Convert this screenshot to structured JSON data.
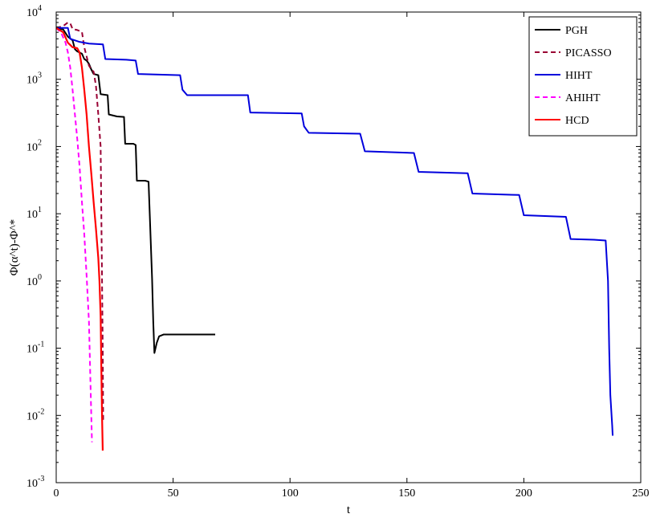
{
  "chart_data": {
    "type": "line",
    "xlabel": "t",
    "ylabel": "Φ(α^t)-Φ^*",
    "xlim": [
      0,
      250
    ],
    "ylim": [
      0.001,
      10000
    ],
    "yscale": "log",
    "x_ticks": [
      "0",
      "50",
      "100",
      "150",
      "200",
      "250"
    ],
    "y_ticks": [
      {
        "base": "10",
        "exp": "4"
      },
      {
        "base": "10",
        "exp": "3"
      },
      {
        "base": "10",
        "exp": "2"
      },
      {
        "base": "10",
        "exp": "1"
      },
      {
        "base": "10",
        "exp": "0"
      },
      {
        "base": "10",
        "exp": "-1"
      },
      {
        "base": "10",
        "exp": "-2"
      },
      {
        "base": "10",
        "exp": "-3"
      }
    ],
    "legend_position": "top-right",
    "series": [
      {
        "name": "PGH",
        "color": "#000000",
        "dash": "solid",
        "points": [
          [
            0,
            5800
          ],
          [
            3,
            5500
          ],
          [
            5,
            4300
          ],
          [
            7,
            3800
          ],
          [
            8,
            2800
          ],
          [
            9,
            2600
          ],
          [
            10,
            2500
          ],
          [
            11,
            2400
          ],
          [
            12,
            2000
          ],
          [
            13,
            1900
          ],
          [
            14,
            1700
          ],
          [
            15,
            1400
          ],
          [
            16,
            1200
          ],
          [
            18,
            1150
          ],
          [
            19,
            600
          ],
          [
            22,
            580
          ],
          [
            22.5,
            300
          ],
          [
            26,
            280
          ],
          [
            29,
            275
          ],
          [
            29.5,
            110
          ],
          [
            33,
            110
          ],
          [
            34,
            105
          ],
          [
            34.5,
            31
          ],
          [
            38,
            31
          ],
          [
            39.5,
            30
          ],
          [
            40,
            10
          ],
          [
            41,
            1.1
          ],
          [
            41.5,
            0.25
          ],
          [
            42,
            0.085
          ],
          [
            43,
            0.12
          ],
          [
            44,
            0.15
          ],
          [
            46,
            0.16
          ],
          [
            55,
            0.16
          ],
          [
            68,
            0.16
          ]
        ]
      },
      {
        "name": "PICASSO",
        "color": "#990033",
        "dash": "dashed",
        "points": [
          [
            0,
            5800
          ],
          [
            3,
            6200
          ],
          [
            5,
            7000
          ],
          [
            6,
            6800
          ],
          [
            7,
            5600
          ],
          [
            9,
            5400
          ],
          [
            11,
            5100
          ],
          [
            12,
            3000
          ],
          [
            14,
            1600
          ],
          [
            15,
            1400
          ],
          [
            16,
            1300
          ],
          [
            17,
            800
          ],
          [
            18,
            300
          ],
          [
            19,
            100
          ],
          [
            19.3,
            10
          ],
          [
            19.6,
            1.0
          ],
          [
            19.9,
            0.1
          ],
          [
            20.1,
            0.008
          ]
        ]
      },
      {
        "name": "HIHT",
        "color": "#0000dd",
        "dash": "solid",
        "points": [
          [
            0,
            5800
          ],
          [
            2,
            5800
          ],
          [
            5,
            5800
          ],
          [
            6,
            4000
          ],
          [
            10,
            3600
          ],
          [
            14,
            3400
          ],
          [
            20,
            3300
          ],
          [
            21,
            2000
          ],
          [
            30,
            1950
          ],
          [
            34,
            1900
          ],
          [
            35,
            1200
          ],
          [
            53,
            1150
          ],
          [
            54,
            700
          ],
          [
            56,
            580
          ],
          [
            82,
            580
          ],
          [
            83,
            320
          ],
          [
            105,
            310
          ],
          [
            106,
            200
          ],
          [
            108,
            160
          ],
          [
            130,
            155
          ],
          [
            132,
            85
          ],
          [
            153,
            80
          ],
          [
            155,
            42
          ],
          [
            176,
            40
          ],
          [
            178,
            20
          ],
          [
            198,
            19
          ],
          [
            200,
            9.5
          ],
          [
            218,
            9
          ],
          [
            220,
            4.2
          ],
          [
            230,
            4.1
          ],
          [
            235,
            4.0
          ],
          [
            236,
            1.0
          ],
          [
            236.5,
            0.1
          ],
          [
            237,
            0.02
          ],
          [
            237.8,
            0.007
          ],
          [
            238,
            0.005
          ]
        ]
      },
      {
        "name": "AHIHT",
        "color": "#ff00ff",
        "dash": "dashed",
        "points": [
          [
            0,
            5800
          ],
          [
            2,
            5000
          ],
          [
            4,
            3500
          ],
          [
            5,
            2500
          ],
          [
            6,
            1500
          ],
          [
            7,
            700
          ],
          [
            8,
            300
          ],
          [
            9,
            130
          ],
          [
            10,
            50
          ],
          [
            11,
            15
          ],
          [
            12,
            5
          ],
          [
            13,
            1.2
          ],
          [
            14,
            0.25
          ],
          [
            14.5,
            0.05
          ],
          [
            15,
            0.01
          ],
          [
            15.3,
            0.004
          ]
        ]
      },
      {
        "name": "HCD",
        "color": "#ff0000",
        "dash": "solid",
        "points": [
          [
            0,
            5800
          ],
          [
            3,
            5000
          ],
          [
            5,
            3500
          ],
          [
            7,
            3000
          ],
          [
            9,
            2900
          ],
          [
            10,
            2500
          ],
          [
            11,
            1500
          ],
          [
            12,
            700
          ],
          [
            13,
            300
          ],
          [
            14,
            100
          ],
          [
            15,
            40
          ],
          [
            16,
            15
          ],
          [
            17,
            6
          ],
          [
            18,
            2.2
          ],
          [
            18.5,
            1.0
          ],
          [
            19,
            0.3
          ],
          [
            19.3,
            0.05
          ],
          [
            19.6,
            0.01
          ],
          [
            19.9,
            0.003
          ]
        ]
      }
    ]
  }
}
